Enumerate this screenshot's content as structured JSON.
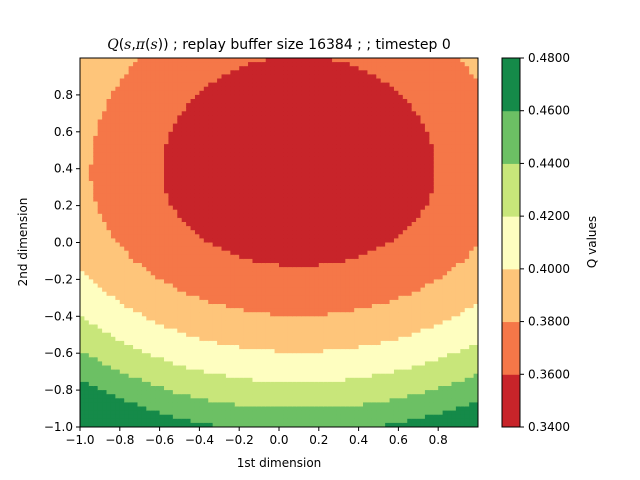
{
  "chart_data": {
    "type": "heatmap",
    "subtype": "filled-contour",
    "title": {
      "math_q": "Q",
      "paren_open": "(",
      "math_s1": "s",
      "comma": ",",
      "math_pi": "π",
      "paren_inner_open": "(",
      "math_s2": "s",
      "paren_close": "))",
      "rest": " ; replay buffer size 16384 ;  ; timestep 0"
    },
    "xlabel": "1st dimension",
    "ylabel": "2nd dimension",
    "colorbar_label": "Q values",
    "xlim": [
      -1.0,
      1.0
    ],
    "ylim": [
      -1.0,
      1.0
    ],
    "x_ticks": [
      "−1.0",
      "−0.8",
      "−0.6",
      "−0.4",
      "−0.2",
      "0.0",
      "0.2",
      "0.4",
      "0.6",
      "0.8"
    ],
    "y_ticks": [
      "−1.0",
      "−0.8",
      "−0.6",
      "−0.4",
      "−0.2",
      "0.0",
      "0.2",
      "0.4",
      "0.6",
      "0.8"
    ],
    "x_tick_values": [
      -1.0,
      -0.8,
      -0.6,
      -0.4,
      -0.2,
      0.0,
      0.2,
      0.4,
      0.6,
      0.8
    ],
    "y_tick_values": [
      -1.0,
      -0.8,
      -0.6,
      -0.4,
      -0.2,
      0.0,
      0.2,
      0.4,
      0.6,
      0.8
    ],
    "levels": [
      0.34,
      0.36,
      0.38,
      0.4,
      0.42,
      0.44,
      0.46,
      0.48
    ],
    "level_labels": [
      "0.3400",
      "0.3600",
      "0.3800",
      "0.4000",
      "0.4200",
      "0.4400",
      "0.4600",
      "0.4800"
    ],
    "band_colors": [
      "#c8242a",
      "#f57748",
      "#fec57a",
      "#fefec0",
      "#c8e67a",
      "#6cc064",
      "#158a49"
    ],
    "grid": false,
    "q_min_estimate": {
      "x": 0.1,
      "y": 0.35,
      "q": 0.345
    },
    "q_max_estimate": {
      "x": -1.0,
      "y": -1.0,
      "q": 0.445
    }
  }
}
